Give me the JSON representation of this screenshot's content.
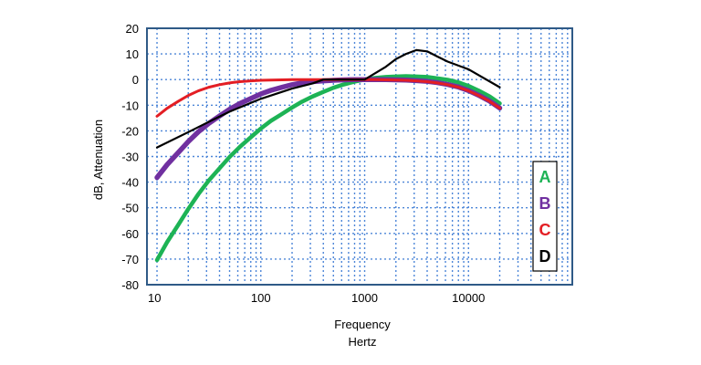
{
  "chart_data": {
    "type": "line",
    "title": "",
    "xlabel_line1": "Frequency",
    "xlabel_line2": "Hertz",
    "ylabel": "dB, Attenuation",
    "xscale": "log",
    "xlim": [
      8,
      100000
    ],
    "ylim": [
      -80,
      20
    ],
    "x_ticks": [
      10,
      100,
      1000,
      10000
    ],
    "x_tick_labels": [
      "10",
      "100",
      "1000",
      "10000"
    ],
    "y_ticks": [
      20,
      10,
      0,
      -10,
      -20,
      -30,
      -40,
      -50,
      -60,
      -70,
      -80
    ],
    "y_tick_labels": [
      "20",
      "10",
      "0",
      "-10",
      "-20",
      "-30",
      "-40",
      "-50",
      "-60",
      "-70",
      "-80"
    ],
    "grid": true,
    "legend_position": "right",
    "series": [
      {
        "name": "A",
        "color": "#1db355",
        "x": [
          10,
          12.5,
          16,
          20,
          25,
          31.5,
          40,
          50,
          63,
          80,
          100,
          125,
          160,
          200,
          250,
          315,
          400,
          500,
          630,
          800,
          1000,
          1250,
          1600,
          2000,
          2500,
          3150,
          4000,
          5000,
          6300,
          8000,
          10000,
          12500,
          16000,
          20000
        ],
        "y": [
          -70.4,
          -63.4,
          -56.7,
          -50.5,
          -44.7,
          -39.4,
          -34.6,
          -30.2,
          -26.2,
          -22.5,
          -19.1,
          -16.1,
          -13.4,
          -10.9,
          -8.6,
          -6.6,
          -4.8,
          -3.2,
          -1.9,
          -0.8,
          0,
          0.6,
          1.0,
          1.2,
          1.3,
          1.2,
          1.0,
          0.5,
          -0.1,
          -1.1,
          -2.5,
          -4.3,
          -6.6,
          -9.3
        ]
      },
      {
        "name": "B",
        "color": "#7030a0",
        "x": [
          10,
          12.5,
          16,
          20,
          25,
          31.5,
          40,
          50,
          63,
          80,
          100,
          125,
          160,
          200,
          250,
          315,
          400,
          500,
          630,
          800,
          1000,
          1250,
          1600,
          2000,
          2500,
          3150,
          4000,
          5000,
          6300,
          8000,
          10000,
          12500,
          16000,
          20000
        ],
        "y": [
          -38.2,
          -33.2,
          -28.5,
          -24.2,
          -20.4,
          -17.1,
          -14.2,
          -11.6,
          -9.3,
          -7.4,
          -5.6,
          -4.2,
          -3.0,
          -2.0,
          -1.3,
          -0.8,
          -0.5,
          -0.3,
          -0.1,
          0,
          0,
          0,
          0,
          -0.1,
          -0.2,
          -0.4,
          -0.7,
          -1.2,
          -1.9,
          -2.9,
          -4.3,
          -6.1,
          -8.4,
          -11.1
        ]
      },
      {
        "name": "C",
        "color": "#e31e24",
        "x": [
          10,
          12.5,
          16,
          20,
          25,
          31.5,
          40,
          50,
          63,
          80,
          100,
          125,
          160,
          200,
          250,
          315,
          400,
          500,
          630,
          800,
          1000,
          1250,
          1600,
          2000,
          2500,
          3150,
          4000,
          5000,
          6300,
          8000,
          10000,
          12500,
          16000,
          20000
        ],
        "y": [
          -14.3,
          -11.2,
          -8.5,
          -6.2,
          -4.4,
          -3.0,
          -2.0,
          -1.3,
          -0.8,
          -0.5,
          -0.3,
          -0.2,
          -0.1,
          0,
          0,
          0,
          0,
          0,
          0,
          0,
          0,
          0,
          -0.1,
          -0.2,
          -0.3,
          -0.5,
          -0.8,
          -1.3,
          -2.0,
          -3.0,
          -4.4,
          -6.2,
          -8.5,
          -11.2
        ]
      },
      {
        "name": "D",
        "color": "#000000",
        "x": [
          10,
          20,
          31.5,
          50,
          100,
          200,
          315,
          400,
          500,
          1000,
          1600,
          2000,
          2500,
          3150,
          4000,
          5000,
          6300,
          10000,
          20000
        ],
        "y": [
          -26.5,
          -20.5,
          -16.5,
          -12.5,
          -7.5,
          -3.5,
          -1.5,
          0,
          0,
          0,
          5,
          8,
          10,
          11.5,
          11,
          9,
          7,
          4,
          -3
        ]
      }
    ],
    "legend": [
      {
        "label": "A",
        "color": "#1db355"
      },
      {
        "label": "B",
        "color": "#7030a0"
      },
      {
        "label": "C",
        "color": "#e31e24"
      },
      {
        "label": "D",
        "color": "#000000"
      }
    ]
  }
}
